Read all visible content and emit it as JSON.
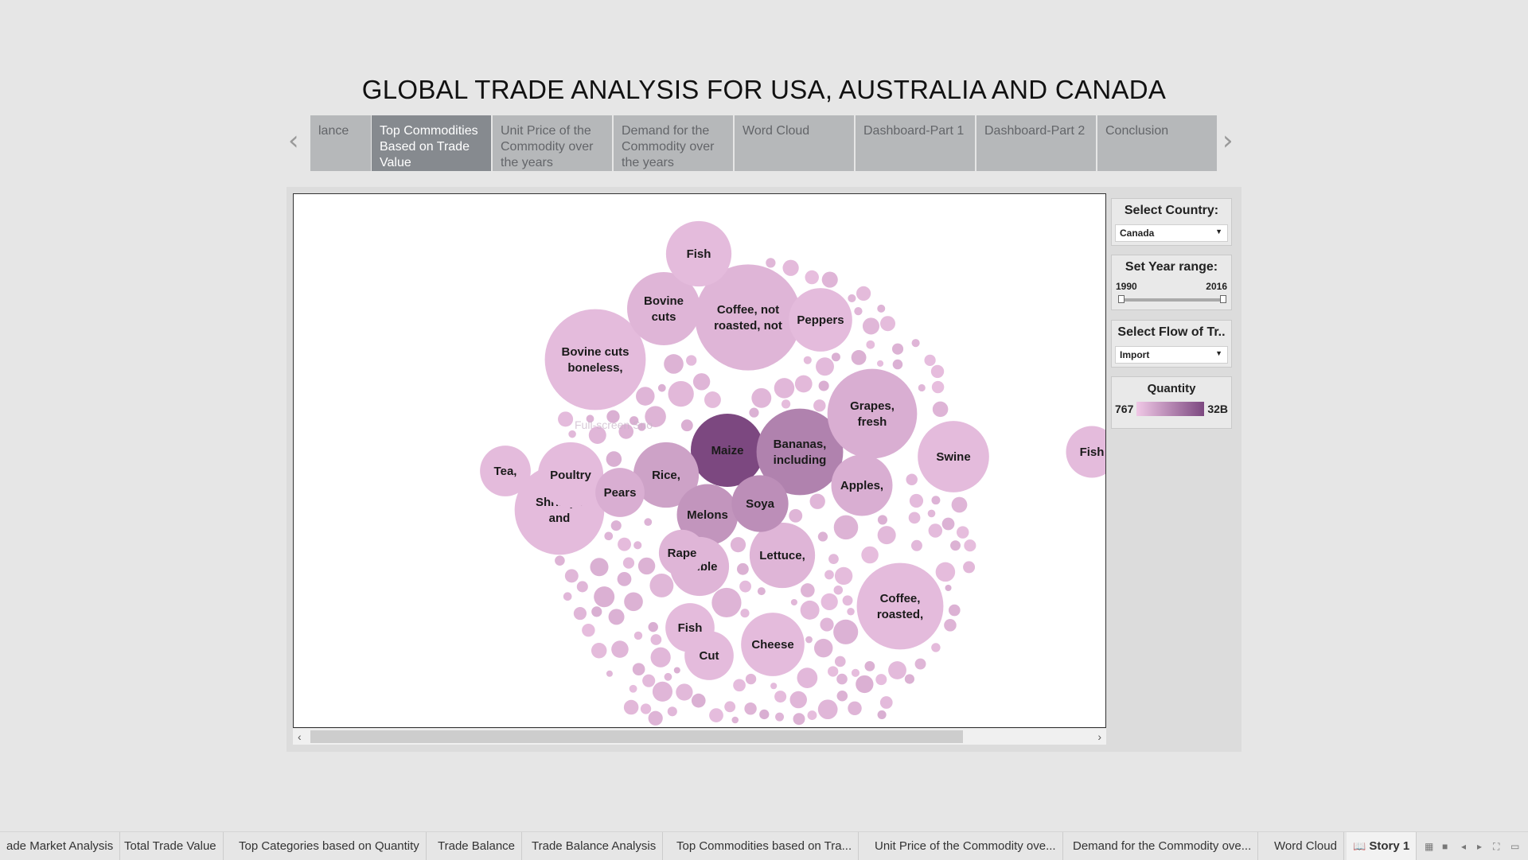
{
  "title": "GLOBAL TRADE ANALYSIS FOR USA, AUSTRALIA AND CANADA",
  "story_points": [
    {
      "label": "lance",
      "active": false
    },
    {
      "label": "Top Commodities Based on Trade Value",
      "active": true
    },
    {
      "label": "Unit Price of the Commodity over the years",
      "active": false
    },
    {
      "label": "Demand for the Commodity over the years",
      "active": false
    },
    {
      "label": "Word Cloud",
      "active": false
    },
    {
      "label": "Dashboard-Part 1",
      "active": false
    },
    {
      "label": "Dashboard-Part 2",
      "active": false
    },
    {
      "label": "Conclusion",
      "active": false
    }
  ],
  "nav": {
    "prev": "‹",
    "next": "›"
  },
  "watermark": "Full-screen Sno",
  "filters": {
    "country": {
      "title": "Select Country:",
      "value": "Canada"
    },
    "year_range": {
      "title": "Set Year range:",
      "min": "1990",
      "max": "2016"
    },
    "flow": {
      "title": "Select Flow of Tr..",
      "value": "Import"
    },
    "legend": {
      "title": "Quantity",
      "min": "767",
      "max": "32B",
      "color_low": "#f0c8e6",
      "color_high": "#7c4880"
    }
  },
  "chart_data": {
    "type": "packed-bubble",
    "size_encoding": "relative trade value",
    "color_encoding": "Quantity",
    "bubbles": [
      {
        "label": "Maize",
        "size": 1.0,
        "shade": 1.0
      },
      {
        "label": "Bananas, including",
        "size": 1.4,
        "shade": 0.55
      },
      {
        "label": "Coffee, not roasted, not",
        "size": 2.1,
        "shade": 0.15
      },
      {
        "label": "Bovine cuts boneless,",
        "size": 1.9,
        "shade": 0.1
      },
      {
        "label": "Grapes, fresh",
        "size": 1.5,
        "shade": 0.2
      },
      {
        "label": "Shrimps and",
        "size": 1.5,
        "shade": 0.1
      },
      {
        "label": "Coffee, roasted,",
        "size": 1.4,
        "shade": 0.1
      },
      {
        "label": "Bovine cuts",
        "size": 1.0,
        "shade": 0.15
      },
      {
        "label": "Swine",
        "size": 0.95,
        "shade": 0.1
      },
      {
        "label": "Fish",
        "size": 0.8,
        "shade": 0.1
      },
      {
        "label": "Peppers",
        "size": 0.75,
        "shade": 0.1
      },
      {
        "label": "Rice,",
        "size": 0.8,
        "shade": 0.3
      },
      {
        "label": "Poultry",
        "size": 0.8,
        "shade": 0.1
      },
      {
        "label": "Lettuce,",
        "size": 0.8,
        "shade": 0.15
      },
      {
        "label": "Cheese",
        "size": 0.75,
        "shade": 0.1
      },
      {
        "label": "Melons",
        "size": 0.7,
        "shade": 0.4
      },
      {
        "label": "Apples,",
        "size": 0.7,
        "shade": 0.2
      },
      {
        "label": "Edible",
        "size": 0.65,
        "shade": 0.15
      },
      {
        "label": "Soya",
        "size": 0.6,
        "shade": 0.45
      },
      {
        "label": "Fish",
        "size": 0.5,
        "shade": 0.1
      },
      {
        "label": "Tea,",
        "size": 0.48,
        "shade": 0.1
      },
      {
        "label": "Pears",
        "size": 0.45,
        "shade": 0.2
      },
      {
        "label": "Rape",
        "size": 0.4,
        "shade": 0.15
      },
      {
        "label": "Fish",
        "size": 0.45,
        "shade": 0.1
      },
      {
        "label": "Cut",
        "size": 0.45,
        "shade": 0.1
      }
    ]
  },
  "scrollbar": {
    "left": "‹",
    "right": "›"
  },
  "sheet_tabs": [
    {
      "label": "ade Market Analysis",
      "active": false
    },
    {
      "label": "Total Trade Value",
      "active": false
    },
    {
      "label": "Top Categories based on Quantity",
      "active": false
    },
    {
      "label": "Trade Balance",
      "active": false
    },
    {
      "label": "Trade Balance Analysis",
      "active": false
    },
    {
      "label": "Top Commodities based on Tra...",
      "active": false
    },
    {
      "label": "Unit Price of the Commodity ove...",
      "active": false
    },
    {
      "label": "Demand for the Commodity ove...",
      "active": false
    },
    {
      "label": "Word Cloud",
      "active": false
    },
    {
      "label": "Story 1",
      "active": true
    }
  ]
}
